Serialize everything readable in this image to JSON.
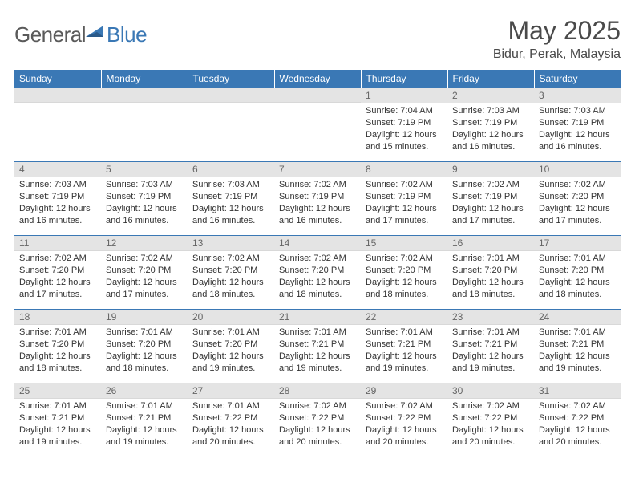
{
  "logo": {
    "text_gray": "General",
    "text_blue": "Blue"
  },
  "header": {
    "title": "May 2025",
    "location": "Bidur, Perak, Malaysia"
  },
  "weekdays": [
    "Sunday",
    "Monday",
    "Tuesday",
    "Wednesday",
    "Thursday",
    "Friday",
    "Saturday"
  ],
  "styling": {
    "header_bg": "#3a78b5",
    "header_text": "#ffffff",
    "daynum_bg": "#e4e4e4",
    "border_color": "#3a78b5",
    "body_text": "#333333",
    "title_fontsize": 32,
    "location_fontsize": 16,
    "weekday_fontsize": 12,
    "cell_fontsize": 11
  },
  "first_weekday_index": 4,
  "days": [
    {
      "n": 1,
      "sunrise": "7:04 AM",
      "sunset": "7:19 PM",
      "daylight": "12 hours and 15 minutes."
    },
    {
      "n": 2,
      "sunrise": "7:03 AM",
      "sunset": "7:19 PM",
      "daylight": "12 hours and 16 minutes."
    },
    {
      "n": 3,
      "sunrise": "7:03 AM",
      "sunset": "7:19 PM",
      "daylight": "12 hours and 16 minutes."
    },
    {
      "n": 4,
      "sunrise": "7:03 AM",
      "sunset": "7:19 PM",
      "daylight": "12 hours and 16 minutes."
    },
    {
      "n": 5,
      "sunrise": "7:03 AM",
      "sunset": "7:19 PM",
      "daylight": "12 hours and 16 minutes."
    },
    {
      "n": 6,
      "sunrise": "7:03 AM",
      "sunset": "7:19 PM",
      "daylight": "12 hours and 16 minutes."
    },
    {
      "n": 7,
      "sunrise": "7:02 AM",
      "sunset": "7:19 PM",
      "daylight": "12 hours and 16 minutes."
    },
    {
      "n": 8,
      "sunrise": "7:02 AM",
      "sunset": "7:19 PM",
      "daylight": "12 hours and 17 minutes."
    },
    {
      "n": 9,
      "sunrise": "7:02 AM",
      "sunset": "7:19 PM",
      "daylight": "12 hours and 17 minutes."
    },
    {
      "n": 10,
      "sunrise": "7:02 AM",
      "sunset": "7:20 PM",
      "daylight": "12 hours and 17 minutes."
    },
    {
      "n": 11,
      "sunrise": "7:02 AM",
      "sunset": "7:20 PM",
      "daylight": "12 hours and 17 minutes."
    },
    {
      "n": 12,
      "sunrise": "7:02 AM",
      "sunset": "7:20 PM",
      "daylight": "12 hours and 17 minutes."
    },
    {
      "n": 13,
      "sunrise": "7:02 AM",
      "sunset": "7:20 PM",
      "daylight": "12 hours and 18 minutes."
    },
    {
      "n": 14,
      "sunrise": "7:02 AM",
      "sunset": "7:20 PM",
      "daylight": "12 hours and 18 minutes."
    },
    {
      "n": 15,
      "sunrise": "7:02 AM",
      "sunset": "7:20 PM",
      "daylight": "12 hours and 18 minutes."
    },
    {
      "n": 16,
      "sunrise": "7:01 AM",
      "sunset": "7:20 PM",
      "daylight": "12 hours and 18 minutes."
    },
    {
      "n": 17,
      "sunrise": "7:01 AM",
      "sunset": "7:20 PM",
      "daylight": "12 hours and 18 minutes."
    },
    {
      "n": 18,
      "sunrise": "7:01 AM",
      "sunset": "7:20 PM",
      "daylight": "12 hours and 18 minutes."
    },
    {
      "n": 19,
      "sunrise": "7:01 AM",
      "sunset": "7:20 PM",
      "daylight": "12 hours and 18 minutes."
    },
    {
      "n": 20,
      "sunrise": "7:01 AM",
      "sunset": "7:20 PM",
      "daylight": "12 hours and 19 minutes."
    },
    {
      "n": 21,
      "sunrise": "7:01 AM",
      "sunset": "7:21 PM",
      "daylight": "12 hours and 19 minutes."
    },
    {
      "n": 22,
      "sunrise": "7:01 AM",
      "sunset": "7:21 PM",
      "daylight": "12 hours and 19 minutes."
    },
    {
      "n": 23,
      "sunrise": "7:01 AM",
      "sunset": "7:21 PM",
      "daylight": "12 hours and 19 minutes."
    },
    {
      "n": 24,
      "sunrise": "7:01 AM",
      "sunset": "7:21 PM",
      "daylight": "12 hours and 19 minutes."
    },
    {
      "n": 25,
      "sunrise": "7:01 AM",
      "sunset": "7:21 PM",
      "daylight": "12 hours and 19 minutes."
    },
    {
      "n": 26,
      "sunrise": "7:01 AM",
      "sunset": "7:21 PM",
      "daylight": "12 hours and 19 minutes."
    },
    {
      "n": 27,
      "sunrise": "7:01 AM",
      "sunset": "7:22 PM",
      "daylight": "12 hours and 20 minutes."
    },
    {
      "n": 28,
      "sunrise": "7:02 AM",
      "sunset": "7:22 PM",
      "daylight": "12 hours and 20 minutes."
    },
    {
      "n": 29,
      "sunrise": "7:02 AM",
      "sunset": "7:22 PM",
      "daylight": "12 hours and 20 minutes."
    },
    {
      "n": 30,
      "sunrise": "7:02 AM",
      "sunset": "7:22 PM",
      "daylight": "12 hours and 20 minutes."
    },
    {
      "n": 31,
      "sunrise": "7:02 AM",
      "sunset": "7:22 PM",
      "daylight": "12 hours and 20 minutes."
    }
  ],
  "labels": {
    "sunrise": "Sunrise: ",
    "sunset": "Sunset: ",
    "daylight": "Daylight: "
  }
}
